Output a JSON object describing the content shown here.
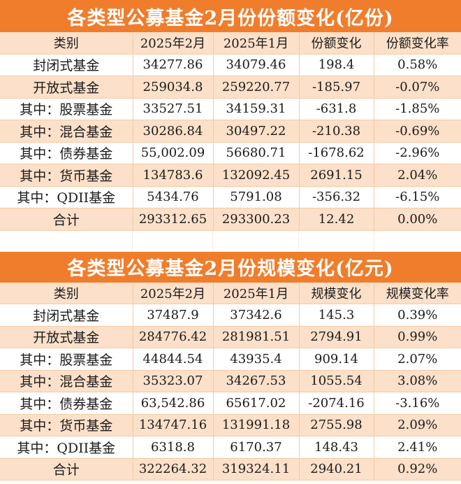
{
  "table1": {
    "title": "各类型公募基金2月份份额变化(亿份)",
    "headers": [
      "类别",
      "2025年2月",
      "2025年1月",
      "份额变化",
      "份额变化率"
    ],
    "rows": [
      [
        "封闭式基金",
        "34277.86",
        "34079.46",
        "198.4",
        "0.58%"
      ],
      [
        "开放式基金",
        "259034.8",
        "259220.77",
        "-185.97",
        "-0.07%"
      ],
      [
        "其中：股票基金",
        "33527.51",
        "34159.31",
        "-631.8",
        "-1.85%"
      ],
      [
        "其中：混合基金",
        "30286.84",
        "30497.22",
        "-210.38",
        "-0.69%"
      ],
      [
        "其中：债券基金",
        "55,002.09",
        "56680.71",
        "-1678.62",
        "-2.96%"
      ],
      [
        "其中：货币基金",
        "134783.6",
        "132092.45",
        "2691.15",
        "2.04%"
      ],
      [
        "其中：QDII基金",
        "5434.76",
        "5791.08",
        "-356.32",
        "-6.15%"
      ],
      [
        "合计",
        "293312.65",
        "293300.23",
        "12.42",
        "0.00%"
      ]
    ]
  },
  "table2": {
    "title": "各类型公募基金2月份规模变化(亿元)",
    "headers": [
      "类别",
      "2025年2月",
      "2025年1月",
      "规模变化",
      "规模变化率"
    ],
    "rows": [
      [
        "封闭式基金",
        "37487.9",
        "37342.6",
        "145.3",
        "0.39%"
      ],
      [
        "开放式基金",
        "284776.42",
        "281981.51",
        "2794.91",
        "0.99%"
      ],
      [
        "其中：股票基金",
        "44844.54",
        "43935.4",
        "909.14",
        "2.07%"
      ],
      [
        "其中：混合基金",
        "35323.07",
        "34267.53",
        "1055.54",
        "3.08%"
      ],
      [
        "其中：债券基金",
        "63,542.86",
        "65617.02",
        "-2074.16",
        "-3.16%"
      ],
      [
        "其中：货币基金",
        "134747.16",
        "131991.18",
        "2755.98",
        "2.09%"
      ],
      [
        "其中：QDII基金",
        "6318.8",
        "6170.37",
        "148.43",
        "2.41%"
      ],
      [
        "合计",
        "322264.32",
        "319324.11",
        "2940.21",
        "0.92%"
      ]
    ]
  },
  "colors": {
    "title_bg": "#f07d2c",
    "stripe": "#fce0c9",
    "white": "#ffffff"
  }
}
